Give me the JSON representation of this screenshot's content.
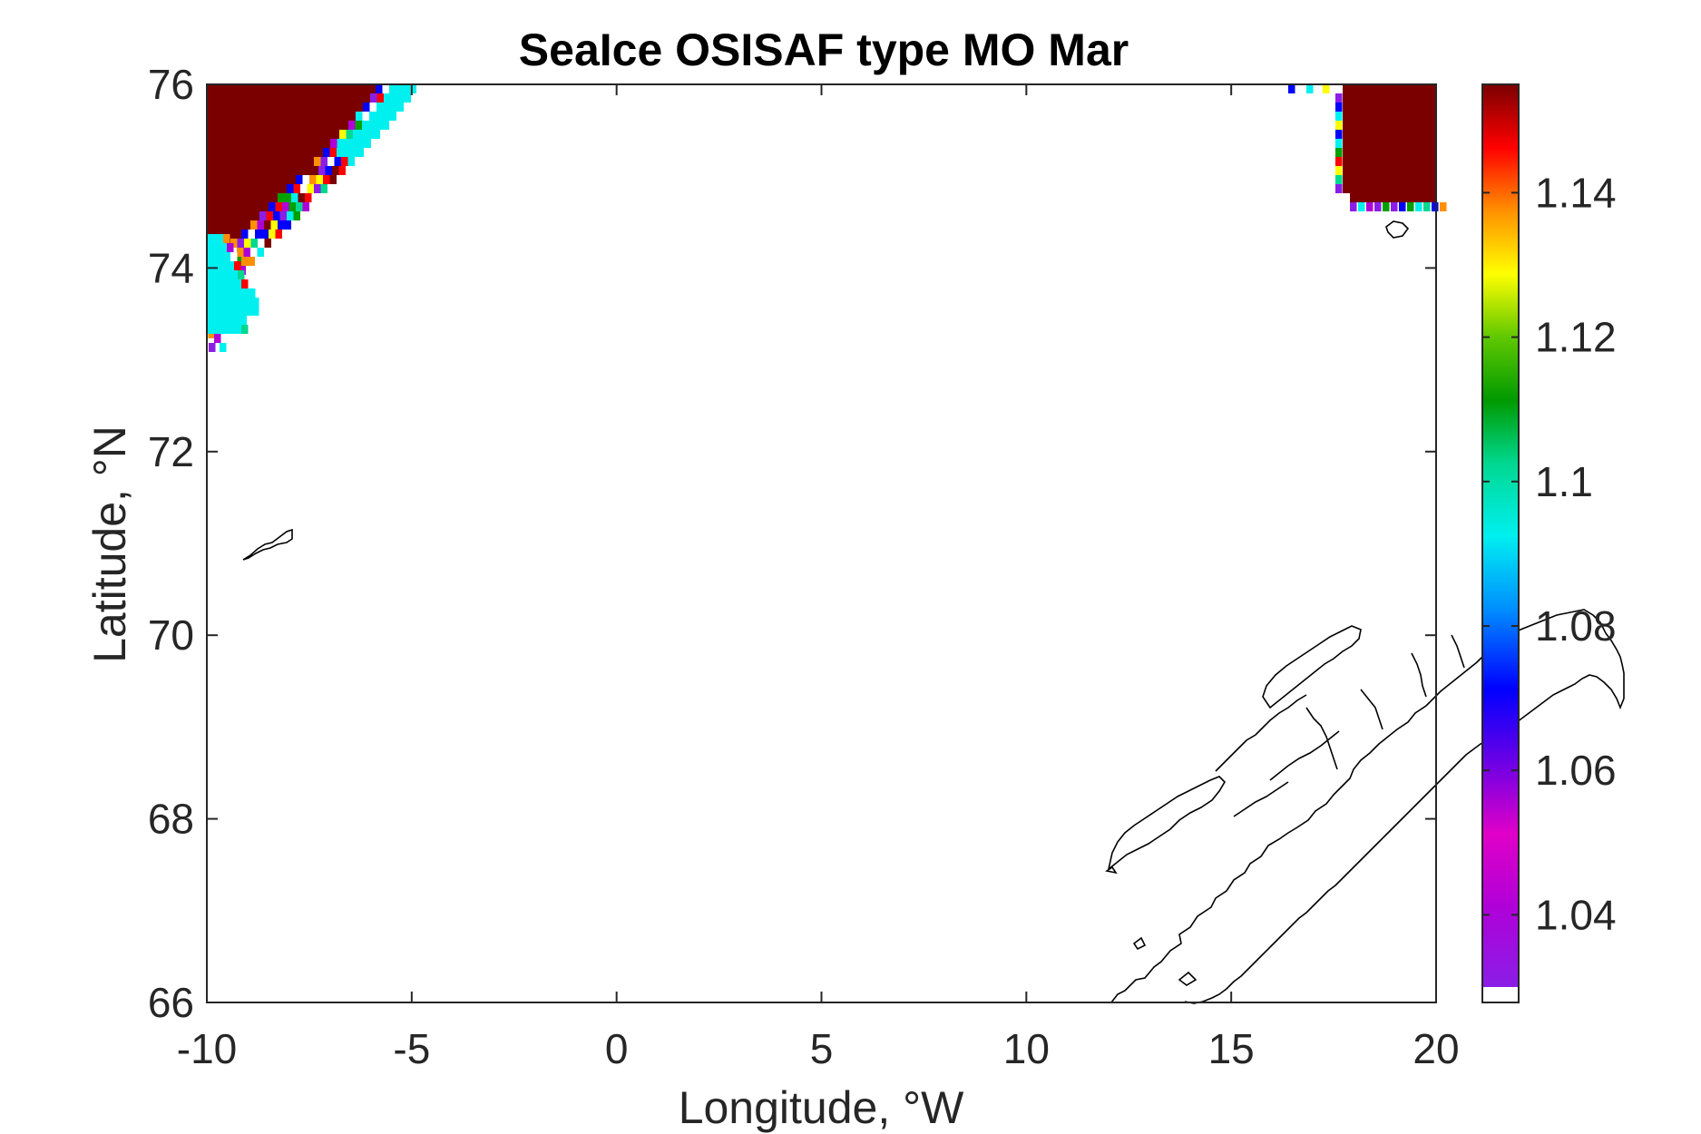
{
  "chart_data": {
    "type": "heatmap",
    "title": "SeaIce OSISAF type MO Mar",
    "xlabel": "Longitude, °W",
    "ylabel": "Latitude, °N",
    "xlim": [
      -10,
      20
    ],
    "ylim": [
      66,
      76
    ],
    "xticks": [
      -10,
      -5,
      0,
      5,
      10,
      15,
      20
    ],
    "yticks": [
      66,
      68,
      70,
      72,
      74,
      76
    ],
    "xtick_labels": [
      "-10",
      "-5",
      "0",
      "5",
      "10",
      "15",
      "20"
    ],
    "ytick_labels": [
      "66",
      "68",
      "70",
      "72",
      "74",
      "76"
    ],
    "colorbar": {
      "range": [
        1.03,
        1.155
      ],
      "ticks": [
        1.04,
        1.06,
        1.08,
        1.1,
        1.12,
        1.14
      ],
      "tick_labels": [
        "1.04",
        "1.06",
        "1.08",
        "1.1",
        "1.12",
        "1.14"
      ],
      "colormap": "jet-like (purple to dark red)"
    },
    "grid": false,
    "regions": [
      {
        "name": "",
        "area": "NW corner (lon -10 to -5, lat 74 to 76)",
        "dominant_value": 1.155
      },
      {
        "name": "",
        "area": "W edge (lon -10 to -8.7, lat 73 to 74.5)",
        "dominant_value": 1.08
      },
      {
        "name": "",
        "area": "NE corner (lon 17.2 to 20, lat 74.8 to 76)",
        "dominant_value": 1.155
      }
    ],
    "coastlines": [
      "Norway coastline (lon 12 to 20, lat 66 to 70.3)",
      "island near lon -8.5, lat 71",
      "island near lon 19, lat 74.4"
    ]
  }
}
